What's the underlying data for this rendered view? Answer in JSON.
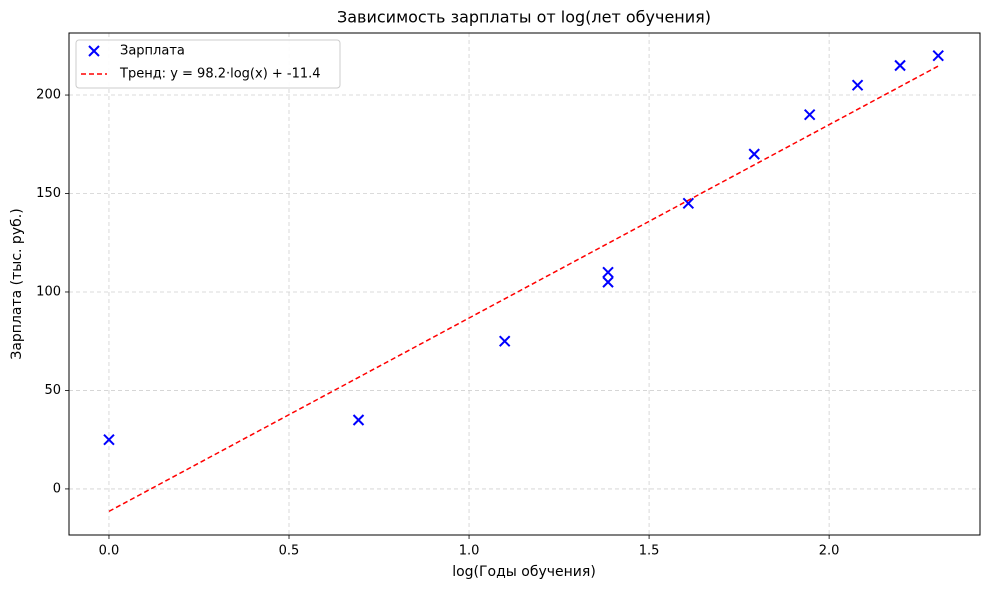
{
  "chart_data": {
    "type": "scatter",
    "title": "Зависимость зарплаты от log(лет обучения)",
    "x_label": "log(Годы обучения)",
    "y_label": "Зарплата (тыс. руб.)",
    "series": [
      {
        "name": "Зарплата",
        "type": "scatter",
        "marker": "x",
        "color": "#0000ff",
        "x": [
          0,
          0.693,
          1.099,
          1.386,
          1.386,
          1.609,
          1.792,
          1.946,
          2.079,
          2.197,
          2.303
        ],
        "values": [
          25,
          35,
          75,
          105,
          110,
          145,
          170,
          190,
          205,
          215,
          220
        ]
      },
      {
        "name": "Тренд: y = 98.2·log(x) + -11.4",
        "type": "line",
        "dashed": true,
        "color": "#ff0000",
        "x": [
          0,
          2.303
        ],
        "values": [
          -11.4,
          214.7
        ]
      }
    ],
    "xlim": [
      -0.111,
      2.419
    ],
    "ylim": [
      -23.4,
      231.5
    ],
    "xticks": [
      {
        "value": 0,
        "label": "0.0"
      },
      0.5,
      {
        "value": 1,
        "label": "1.0"
      },
      1.5,
      {
        "value": 2,
        "label": "2.0"
      }
    ],
    "yticks": [
      0,
      50,
      100,
      150,
      200
    ],
    "grid": true,
    "legend": "upper-left"
  }
}
